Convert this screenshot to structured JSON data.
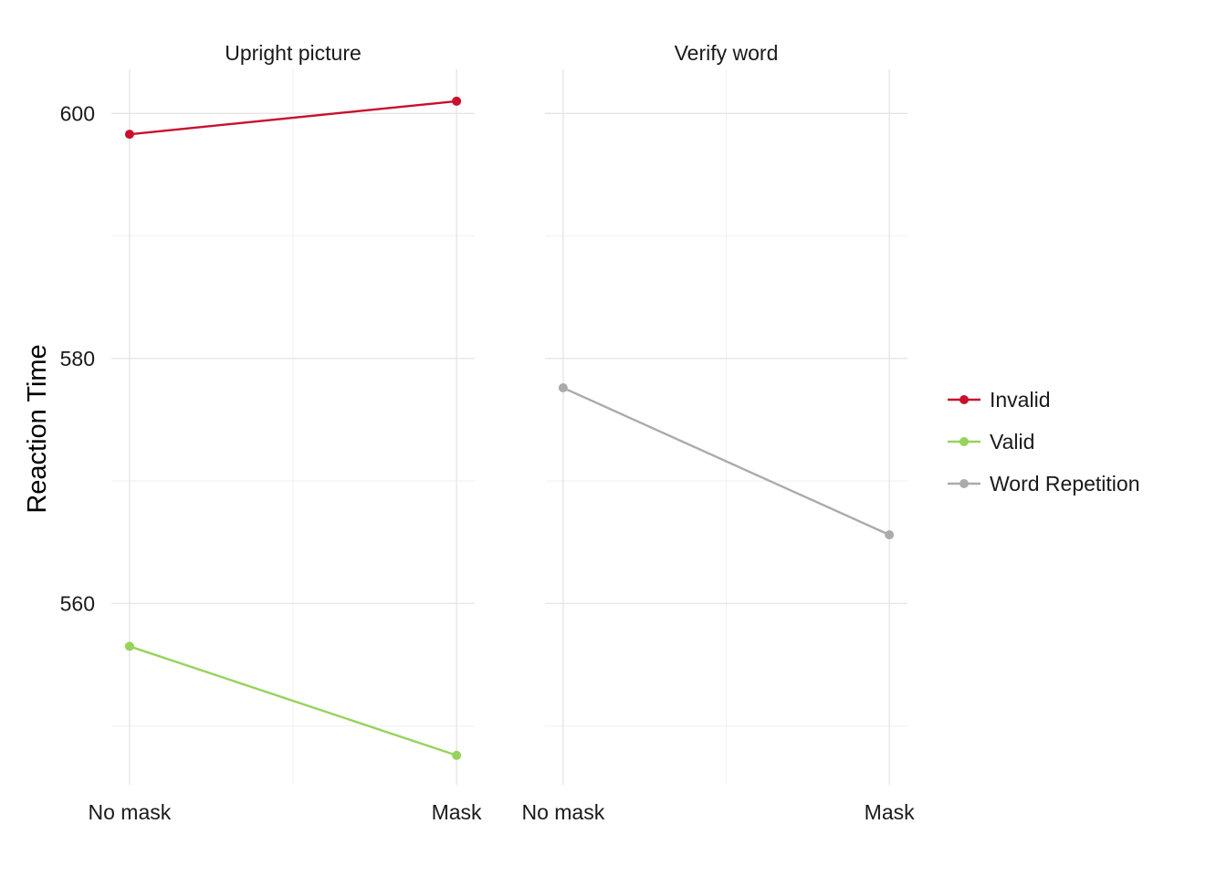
{
  "chart_data": {
    "type": "line",
    "ylabel": "Reaction Time",
    "xlabel": "",
    "ylim": [
      545.2,
      603.6
    ],
    "y_ticks": [
      560,
      580,
      600
    ],
    "x_categories": [
      "No mask",
      "Mask"
    ],
    "legend_position": "right",
    "grid": true,
    "panels": [
      {
        "title": "Upright picture",
        "series": [
          {
            "name": "Invalid",
            "values": [
              598.3,
              601.0
            ]
          },
          {
            "name": "Valid",
            "values": [
              556.5,
              547.6
            ]
          }
        ]
      },
      {
        "title": "Verify word",
        "series": [
          {
            "name": "Word Repetition",
            "values": [
              577.6,
              565.6
            ]
          }
        ]
      }
    ],
    "legend": [
      {
        "name": "Invalid",
        "color": "#C8102E"
      },
      {
        "name": "Valid",
        "color": "#97D35C"
      },
      {
        "name": "Word Repetition",
        "color": "#ABABAB"
      }
    ]
  }
}
